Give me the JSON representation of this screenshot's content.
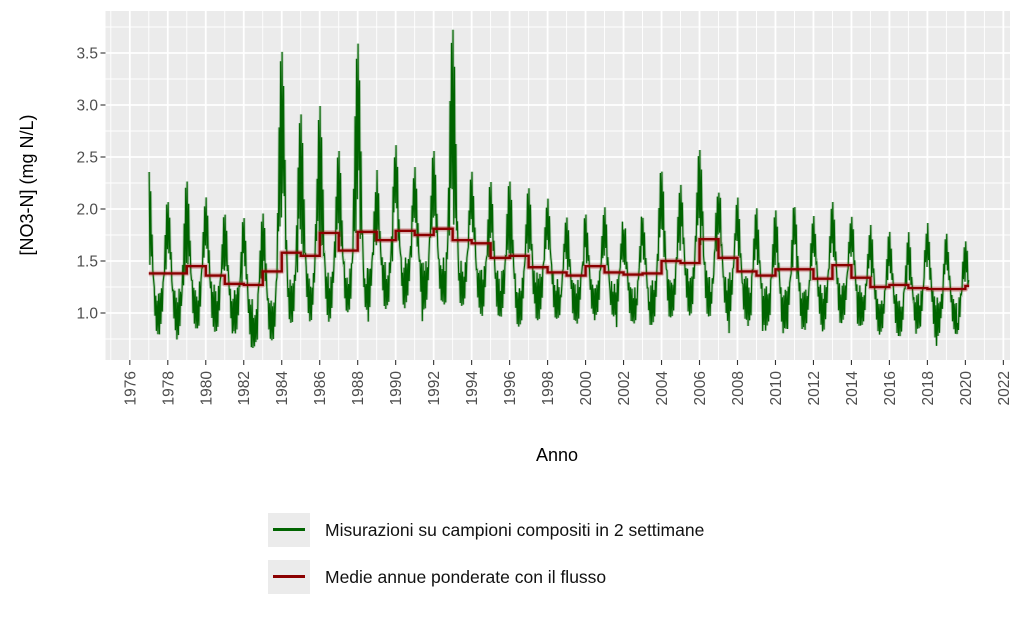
{
  "chart_data": {
    "type": "line",
    "title": "",
    "xlabel": "Anno",
    "ylabel": "[NO3-N] (mg N/L)",
    "x_ticks": [
      1976,
      1978,
      1980,
      1982,
      1984,
      1986,
      1988,
      1990,
      1992,
      1994,
      1996,
      1998,
      2000,
      2002,
      2004,
      2006,
      2008,
      2010,
      2012,
      2014,
      2016,
      2018,
      2020,
      2022
    ],
    "y_tick_labels": [
      "1.0",
      "1.5",
      "2.0",
      "2.5",
      "3.0",
      "3.5"
    ],
    "y_tick_values": [
      1.0,
      1.5,
      2.0,
      2.5,
      3.0,
      3.5
    ],
    "xlim": [
      1974.72,
      2022.35
    ],
    "ylim": [
      0.55,
      3.93
    ],
    "grid": {
      "major": true,
      "minor": true,
      "grid_color": "#ffffff",
      "panel_bg": "#ebebeb"
    },
    "legend_position": "bottom",
    "data_start": 1977.0,
    "data_end": 2020.2,
    "series": [
      {
        "name": "Misurazioni su campioni compositi in 2 settimane",
        "color": "#006400",
        "kind": "biweekly-measurements",
        "samples_per_year": 26,
        "years": [
          1977,
          1978,
          1979,
          1980,
          1981,
          1982,
          1983,
          1984,
          1985,
          1986,
          1987,
          1988,
          1989,
          1990,
          1991,
          1992,
          1993,
          1994,
          1995,
          1996,
          1997,
          1998,
          1999,
          2000,
          2001,
          2002,
          2003,
          2004,
          2005,
          2006,
          2007,
          2008,
          2009,
          2010,
          2011,
          2012,
          2013,
          2014,
          2015,
          2016,
          2017,
          2018,
          2019,
          2020
        ],
        "winter_max": [
          2.4,
          2.1,
          2.25,
          2.1,
          1.95,
          1.9,
          1.98,
          3.55,
          2.95,
          3.0,
          2.55,
          3.62,
          2.35,
          2.6,
          2.4,
          2.57,
          3.73,
          2.35,
          2.25,
          2.3,
          2.2,
          2.1,
          1.95,
          1.95,
          2.0,
          1.95,
          1.95,
          2.4,
          2.25,
          2.6,
          2.3,
          2.1,
          2.0,
          2.0,
          2.05,
          1.95,
          2.1,
          1.95,
          1.85,
          1.8,
          1.75,
          1.85,
          1.75,
          1.7
        ],
        "summer_min": [
          0.82,
          0.78,
          0.85,
          0.82,
          0.8,
          0.68,
          0.72,
          0.9,
          0.95,
          0.95,
          1.0,
          1.0,
          1.05,
          1.08,
          1.05,
          1.1,
          1.05,
          1.0,
          0.95,
          0.9,
          0.95,
          0.95,
          0.92,
          0.95,
          0.95,
          0.9,
          0.9,
          0.95,
          1.0,
          1.0,
          0.95,
          0.9,
          0.85,
          0.82,
          0.85,
          0.85,
          0.9,
          0.85,
          0.8,
          0.78,
          0.82,
          0.78,
          0.82,
          0.8
        ],
        "notable_peaks": [
          [
            1977.05,
            2.4
          ],
          [
            1984.05,
            3.55
          ],
          [
            1986.1,
            3.0
          ],
          [
            1988.05,
            3.62
          ],
          [
            1990.0,
            2.6
          ],
          [
            1992.0,
            2.57
          ],
          [
            1993.0,
            3.73
          ],
          [
            2006.0,
            2.6
          ]
        ]
      },
      {
        "name": "Medie annue ponderate con il flusso",
        "color": "#8B0000",
        "kind": "annual-step-means",
        "years": [
          1977,
          1978,
          1979,
          1980,
          1981,
          1982,
          1983,
          1984,
          1985,
          1986,
          1987,
          1988,
          1989,
          1990,
          1991,
          1992,
          1993,
          1994,
          1995,
          1996,
          1997,
          1998,
          1999,
          2000,
          2001,
          2002,
          2003,
          2004,
          2005,
          2006,
          2007,
          2008,
          2009,
          2010,
          2011,
          2012,
          2013,
          2014,
          2015,
          2016,
          2017,
          2018,
          2019,
          2020
        ],
        "values": [
          1.38,
          1.38,
          1.45,
          1.36,
          1.28,
          1.27,
          1.4,
          1.58,
          1.55,
          1.77,
          1.6,
          1.78,
          1.7,
          1.79,
          1.75,
          1.81,
          1.7,
          1.67,
          1.53,
          1.55,
          1.44,
          1.39,
          1.36,
          1.45,
          1.39,
          1.37,
          1.38,
          1.5,
          1.48,
          1.71,
          1.53,
          1.4,
          1.36,
          1.42,
          1.42,
          1.33,
          1.46,
          1.34,
          1.25,
          1.27,
          1.24,
          1.23,
          1.23,
          1.26
        ]
      }
    ]
  },
  "legend": {
    "items": [
      {
        "label": "Misurazioni su campioni compositi in 2 settimane",
        "color": "#006400"
      },
      {
        "label": "Medie annue ponderate con il flusso",
        "color": "#8B0000"
      }
    ]
  }
}
